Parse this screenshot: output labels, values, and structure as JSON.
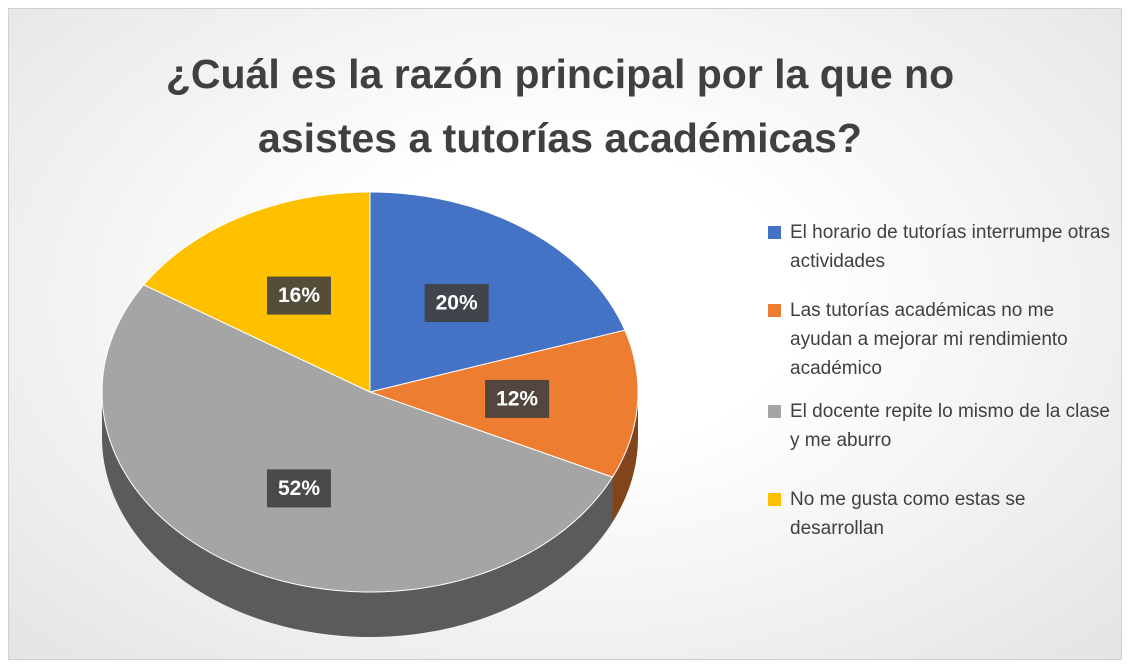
{
  "chart_data": {
    "type": "pie",
    "title": "¿Cuál es la razón principal por la que no asistes a tutorías académicas?",
    "categories": [
      "El horario de tutorías interrumpe otras actividades",
      "Las tutorías académicas no me ayudan a mejorar mi rendimiento académico",
      "El docente repite lo mismo de la clase y me aburro",
      "No me gusta como estas se desarrollan"
    ],
    "values": [
      20,
      12,
      52,
      16
    ],
    "value_labels": [
      "20%",
      "12%",
      "52%",
      "16%"
    ],
    "colors": [
      "#4472c4",
      "#ed7d31",
      "#a5a5a5",
      "#ffc000"
    ],
    "legend": "right"
  }
}
